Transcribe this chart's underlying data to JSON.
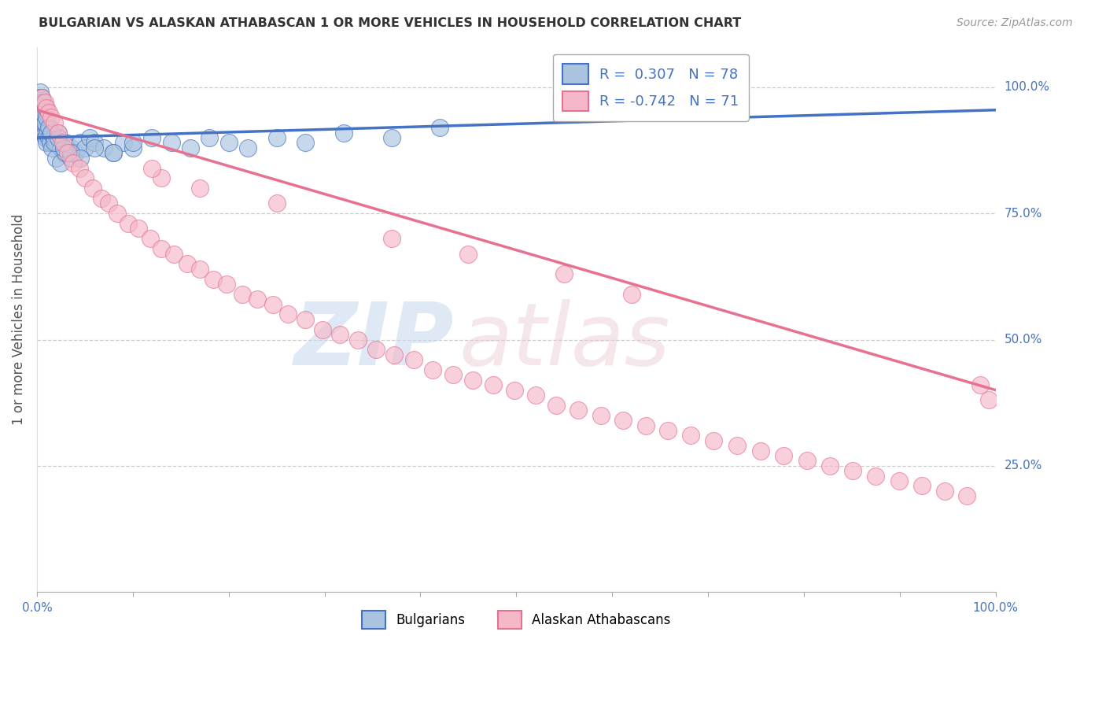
{
  "title": "BULGARIAN VS ALASKAN ATHABASCAN 1 OR MORE VEHICLES IN HOUSEHOLD CORRELATION CHART",
  "source": "Source: ZipAtlas.com",
  "ylabel": "1 or more Vehicles in Household",
  "xlim": [
    0.0,
    1.0
  ],
  "ylim": [
    0.0,
    1.08
  ],
  "blue_line_color": "#4472c4",
  "blue_scatter_face": "#aac4e0",
  "blue_scatter_edge": "#4472c4",
  "pink_line_color": "#e87090",
  "pink_scatter_face": "#f4b8c8",
  "pink_scatter_edge": "#e87090",
  "legend_box_labels": [
    "R =  0.307   N = 78",
    "R = -0.742   N = 71"
  ],
  "bottom_labels": [
    "Bulgarians",
    "Alaskan Athabascans"
  ],
  "grid_color": "#cccccc",
  "bg_color": "#ffffff",
  "title_color": "#333333",
  "source_color": "#999999",
  "axis_label_color": "#4472c4",
  "ylabel_color": "#555555",
  "blue_trend_start_y": 0.9,
  "blue_trend_end_y": 0.955,
  "pink_trend_start_y": 0.955,
  "pink_trend_end_y": 0.4,
  "bulgarian_x": [
    0.001,
    0.002,
    0.002,
    0.003,
    0.003,
    0.003,
    0.004,
    0.004,
    0.004,
    0.005,
    0.005,
    0.005,
    0.006,
    0.006,
    0.006,
    0.007,
    0.007,
    0.008,
    0.008,
    0.009,
    0.009,
    0.01,
    0.01,
    0.011,
    0.012,
    0.013,
    0.014,
    0.015,
    0.016,
    0.018,
    0.02,
    0.022,
    0.025,
    0.028,
    0.03,
    0.035,
    0.04,
    0.045,
    0.05,
    0.055,
    0.06,
    0.07,
    0.08,
    0.09,
    0.1,
    0.12,
    0.14,
    0.16,
    0.18,
    0.2,
    0.22,
    0.25,
    0.28,
    0.32,
    0.37,
    0.42,
    0.02,
    0.025,
    0.03,
    0.035,
    0.003,
    0.004,
    0.005,
    0.006,
    0.007,
    0.008,
    0.009,
    0.01,
    0.012,
    0.015,
    0.018,
    0.022,
    0.028,
    0.035,
    0.045,
    0.06,
    0.08,
    0.1
  ],
  "bulgarian_y": [
    0.98,
    0.97,
    0.95,
    0.99,
    0.96,
    0.94,
    0.98,
    0.95,
    0.93,
    0.97,
    0.94,
    0.92,
    0.96,
    0.93,
    0.91,
    0.95,
    0.92,
    0.94,
    0.91,
    0.93,
    0.9,
    0.92,
    0.89,
    0.91,
    0.9,
    0.92,
    0.89,
    0.91,
    0.88,
    0.9,
    0.89,
    0.91,
    0.88,
    0.87,
    0.89,
    0.88,
    0.87,
    0.89,
    0.88,
    0.9,
    0.89,
    0.88,
    0.87,
    0.89,
    0.88,
    0.9,
    0.89,
    0.88,
    0.9,
    0.89,
    0.88,
    0.9,
    0.89,
    0.91,
    0.9,
    0.92,
    0.86,
    0.85,
    0.87,
    0.86,
    0.97,
    0.96,
    0.98,
    0.95,
    0.97,
    0.93,
    0.96,
    0.94,
    0.92,
    0.91,
    0.89,
    0.9,
    0.88,
    0.87,
    0.86,
    0.88,
    0.87,
    0.89
  ],
  "athabascan_x": [
    0.005,
    0.008,
    0.01,
    0.012,
    0.015,
    0.018,
    0.022,
    0.027,
    0.032,
    0.038,
    0.044,
    0.05,
    0.058,
    0.067,
    0.075,
    0.084,
    0.095,
    0.106,
    0.118,
    0.13,
    0.143,
    0.157,
    0.17,
    0.184,
    0.198,
    0.214,
    0.23,
    0.246,
    0.262,
    0.28,
    0.298,
    0.316,
    0.335,
    0.354,
    0.373,
    0.393,
    0.413,
    0.434,
    0.455,
    0.476,
    0.498,
    0.52,
    0.542,
    0.565,
    0.588,
    0.611,
    0.635,
    0.658,
    0.682,
    0.706,
    0.73,
    0.755,
    0.779,
    0.803,
    0.827,
    0.851,
    0.875,
    0.899,
    0.923,
    0.947,
    0.97,
    0.984,
    0.993,
    0.13,
    0.17,
    0.25,
    0.37,
    0.45,
    0.55,
    0.62,
    0.12
  ],
  "athabascan_y": [
    0.98,
    0.97,
    0.96,
    0.95,
    0.94,
    0.93,
    0.91,
    0.89,
    0.87,
    0.85,
    0.84,
    0.82,
    0.8,
    0.78,
    0.77,
    0.75,
    0.73,
    0.72,
    0.7,
    0.68,
    0.67,
    0.65,
    0.64,
    0.62,
    0.61,
    0.59,
    0.58,
    0.57,
    0.55,
    0.54,
    0.52,
    0.51,
    0.5,
    0.48,
    0.47,
    0.46,
    0.44,
    0.43,
    0.42,
    0.41,
    0.4,
    0.39,
    0.37,
    0.36,
    0.35,
    0.34,
    0.33,
    0.32,
    0.31,
    0.3,
    0.29,
    0.28,
    0.27,
    0.26,
    0.25,
    0.24,
    0.23,
    0.22,
    0.21,
    0.2,
    0.19,
    0.41,
    0.38,
    0.82,
    0.8,
    0.77,
    0.7,
    0.67,
    0.63,
    0.59,
    0.84
  ]
}
